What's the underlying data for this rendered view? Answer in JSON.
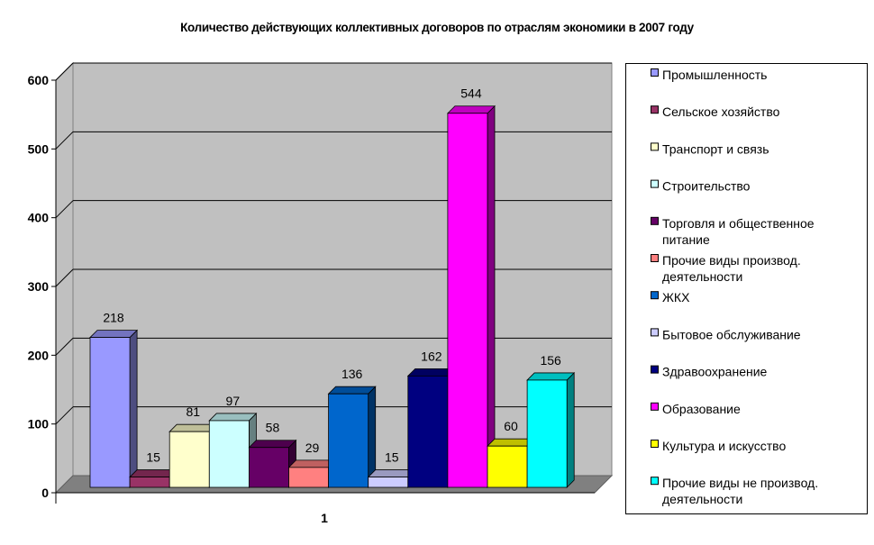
{
  "chart_data": {
    "type": "bar",
    "style": "3d-clustered-column",
    "title": "Количество действующих коллективных договоров по отраслям экономики в 2007 году",
    "categories": [
      "1"
    ],
    "ylim": [
      0,
      600
    ],
    "yticks": [
      0,
      100,
      200,
      300,
      400,
      500,
      600
    ],
    "grid": true,
    "legend_position": "right",
    "series": [
      {
        "name": "Промышленность",
        "values": [
          218
        ],
        "color": "#9999FF"
      },
      {
        "name": "Сельское хозяйство",
        "values": [
          15
        ],
        "color": "#993366"
      },
      {
        "name": "Транспорт и связь",
        "values": [
          81
        ],
        "color": "#FFFFCC"
      },
      {
        "name": "Строительство",
        "values": [
          97
        ],
        "color": "#CCFFFF"
      },
      {
        "name": "Торговля и общественное питание",
        "values": [
          58
        ],
        "color": "#660066"
      },
      {
        "name": "Прочие виды производ. деятельности",
        "values": [
          29
        ],
        "color": "#FF8080"
      },
      {
        "name": "ЖКХ",
        "values": [
          136
        ],
        "color": "#0066CC"
      },
      {
        "name": "Бытовое обслуживание",
        "values": [
          15
        ],
        "color": "#CCCCFF"
      },
      {
        "name": "Здравоохранение",
        "values": [
          162
        ],
        "color": "#000080"
      },
      {
        "name": "Образование",
        "values": [
          544
        ],
        "color": "#FF00FF"
      },
      {
        "name": "Культура и искусство",
        "values": [
          60
        ],
        "color": "#FFFF00"
      },
      {
        "name": "Прочие виды не производ. деятельности",
        "values": [
          156
        ],
        "color": "#00FFFF"
      }
    ]
  }
}
